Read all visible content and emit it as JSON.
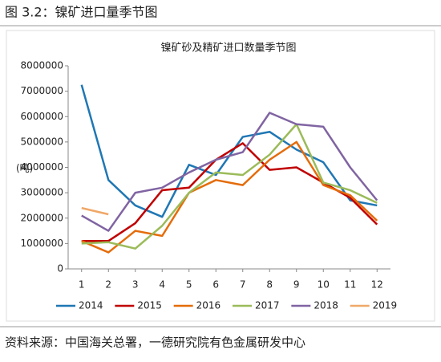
{
  "header": {
    "title": "图 3.2：镍矿进口量季节图"
  },
  "chart_data": {
    "type": "line",
    "title": "镍矿砂及精矿进口数量季节图",
    "y_label": "(吨)",
    "x": [
      1,
      2,
      3,
      4,
      5,
      6,
      7,
      8,
      9,
      10,
      11,
      12
    ],
    "xlim": [
      0.5,
      12.5
    ],
    "xticks": [
      1,
      2,
      3,
      4,
      5,
      6,
      7,
      8,
      9,
      10,
      11,
      12
    ],
    "ylim": [
      0,
      8000000
    ],
    "yticks": [
      0,
      1000000,
      2000000,
      3000000,
      4000000,
      5000000,
      6000000,
      7000000,
      8000000
    ],
    "grid": false,
    "legend": "bottom",
    "series": [
      {
        "name": "2014",
        "color": "#1f77b4",
        "values": [
          7250000,
          3500000,
          2500000,
          2050000,
          4100000,
          3700000,
          5200000,
          5400000,
          4700000,
          4200000,
          2700000,
          2500000
        ]
      },
      {
        "name": "2015",
        "color": "#c00000",
        "values": [
          1100000,
          1100000,
          1800000,
          3100000,
          3200000,
          4300000,
          4950000,
          3900000,
          4000000,
          3400000,
          2800000,
          1750000
        ]
      },
      {
        "name": "2016",
        "color": "#e46c0a",
        "values": [
          1100000,
          650000,
          1500000,
          1300000,
          3000000,
          3500000,
          3300000,
          4300000,
          5000000,
          3300000,
          2900000,
          1900000
        ]
      },
      {
        "name": "2017",
        "color": "#9bbb59",
        "values": [
          1000000,
          1050000,
          800000,
          1700000,
          3000000,
          3800000,
          3700000,
          4500000,
          5700000,
          3400000,
          3100000,
          2600000
        ]
      },
      {
        "name": "2018",
        "color": "#8064a2",
        "values": [
          2100000,
          1500000,
          3000000,
          3200000,
          3800000,
          4300000,
          4600000,
          6150000,
          5700000,
          5600000,
          4000000,
          2700000
        ]
      },
      {
        "name": "2019",
        "color": "#f0a868",
        "values": [
          2400000,
          2150000,
          null,
          null,
          null,
          null,
          null,
          null,
          null,
          null,
          null,
          null
        ]
      }
    ]
  },
  "source": "资料来源：中国海关总署，一德研究院有色金属研发中心"
}
